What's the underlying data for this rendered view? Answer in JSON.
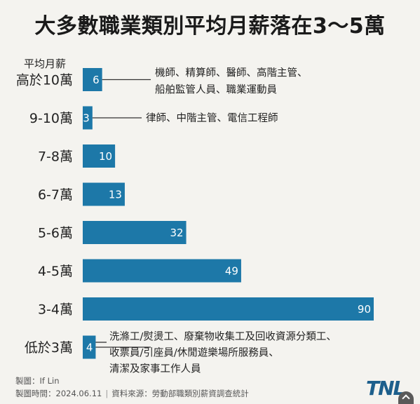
{
  "chart_data": {
    "type": "bar",
    "orientation": "horizontal",
    "title": "大多數職業類別平均月薪落在3～5萬",
    "ylabel": "平均月薪",
    "categories": [
      "高於10萬",
      "9-10萬",
      "7-8萬",
      "6-7萬",
      "5-6萬",
      "4-5萬",
      "3-4萬",
      "低於3萬"
    ],
    "values": [
      6,
      3,
      10,
      13,
      32,
      49,
      90,
      4
    ],
    "xlim": [
      0,
      90
    ],
    "grid": false,
    "bar_color": "#1d78a8",
    "annotations": [
      {
        "category": "高於10萬",
        "lines": [
          "機師、精算師、醫師、高階主管、",
          "船舶監管人員、職業運動員"
        ]
      },
      {
        "category": "9-10萬",
        "lines": [
          "律師、中階主管、電信工程師"
        ]
      },
      {
        "category": "低於3萬",
        "lines": [
          "洗滌工/熨燙工、廢棄物收集工及回收資源分類工、",
          "收票員/引座員/休閒遊樂場所服務員、",
          "清潔及家事工作人員"
        ]
      }
    ]
  },
  "footer": {
    "maker": "製圖：If Lin",
    "date": "製圖時間：2024.06.11",
    "source": "資料來源：勞動部職類別薪資調查統計"
  },
  "logo": "TNL"
}
